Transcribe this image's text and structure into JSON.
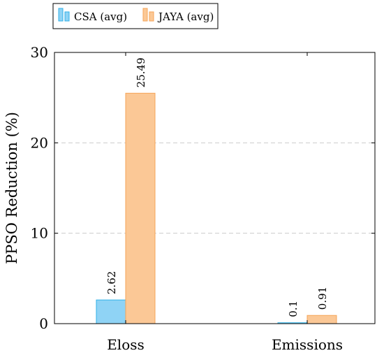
{
  "chart_data": {
    "type": "bar",
    "categories": [
      "Eloss",
      "Emissions"
    ],
    "series": [
      {
        "name": "CSA (avg)",
        "values": [
          2.62,
          0.1
        ],
        "labels": [
          "2.62",
          "0.1"
        ],
        "fill": "#8fd3f5",
        "stroke": "#30b2e8"
      },
      {
        "name": "JAYA (avg)",
        "values": [
          25.49,
          0.91
        ],
        "labels": [
          "25.49",
          "0.91"
        ],
        "fill": "#fbc896",
        "stroke": "#f5a458"
      }
    ],
    "ylabel": "PPSO Reduction (%)",
    "ylim": [
      0,
      30
    ],
    "yticks": [
      0,
      10,
      20,
      30
    ],
    "grid": "horizontal-dashed",
    "legend_position": "top-left"
  }
}
